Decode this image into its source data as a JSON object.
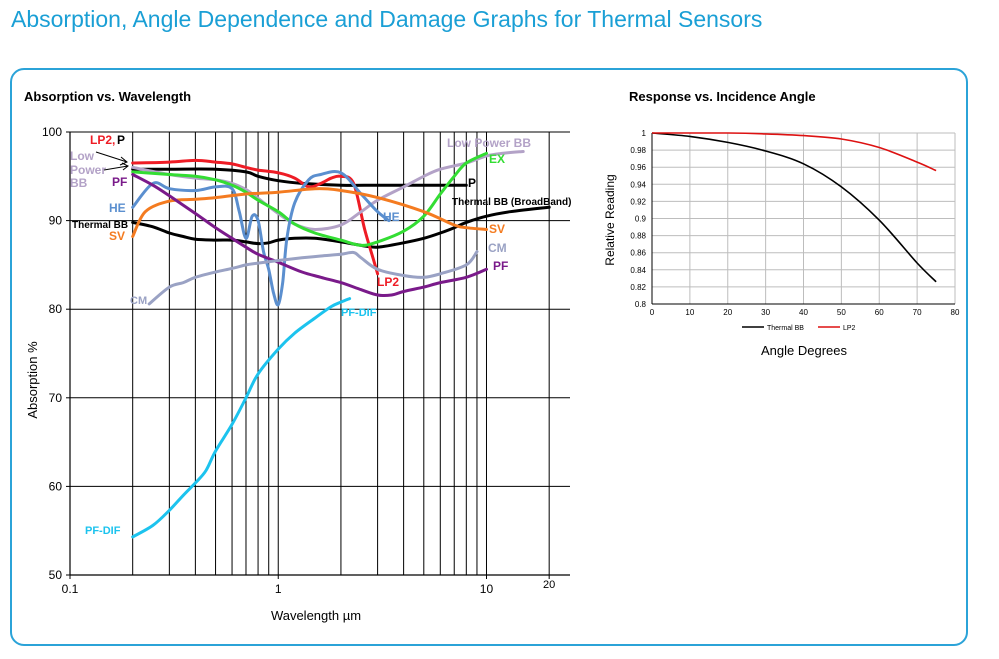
{
  "page": {
    "title": "Absorption, Angle Dependence and Damage Graphs for Thermal Sensors"
  },
  "chart_data": [
    {
      "type": "line",
      "title": "Absorption vs. Wavelength",
      "xlabel": "Wavelength µm",
      "ylabel": "Absorption %",
      "xscale": "log",
      "xlim": [
        0.1,
        20
      ],
      "ylim": [
        50,
        100
      ],
      "xticks": [
        "0.1",
        "1",
        "10",
        "20"
      ],
      "yticks": [
        "50",
        "60",
        "70",
        "80",
        "90",
        "100"
      ],
      "series": [
        {
          "name": "Thermal BB",
          "color": "#000000",
          "points": [
            [
              0.2,
              89.8
            ],
            [
              0.25,
              89.3
            ],
            [
              0.3,
              88.6
            ],
            [
              0.35,
              88.2
            ],
            [
              0.4,
              87.9
            ],
            [
              0.5,
              87.8
            ],
            [
              0.6,
              87.8
            ],
            [
              0.7,
              87.6
            ],
            [
              0.8,
              87.4
            ],
            [
              0.9,
              87.5
            ],
            [
              1.0,
              87.8
            ],
            [
              1.2,
              88.0
            ],
            [
              1.5,
              88.0
            ],
            [
              2.0,
              87.6
            ],
            [
              2.5,
              87.2
            ],
            [
              3.0,
              87.0
            ],
            [
              4.0,
              87.5
            ],
            [
              5.0,
              88.0
            ],
            [
              6.0,
              88.6
            ],
            [
              7.0,
              89.2
            ],
            [
              8.0,
              89.8
            ],
            [
              10.0,
              90.5
            ],
            [
              13.0,
              91.0
            ],
            [
              20.0,
              91.5
            ]
          ]
        },
        {
          "name": "P",
          "color": "#000000",
          "points": [
            [
              0.2,
              95.8
            ],
            [
              0.3,
              95.8
            ],
            [
              0.5,
              95.8
            ],
            [
              0.7,
              95.5
            ],
            [
              0.8,
              95.0
            ],
            [
              1.0,
              94.5
            ],
            [
              1.3,
              94.2
            ],
            [
              2.0,
              94.0
            ],
            [
              3.0,
              94.0
            ],
            [
              5.0,
              94.0
            ],
            [
              8.0,
              94.0
            ]
          ]
        },
        {
          "name": "LP2",
          "color": "#ee1c25",
          "points": [
            [
              0.2,
              96.5
            ],
            [
              0.3,
              96.6
            ],
            [
              0.4,
              96.8
            ],
            [
              0.5,
              96.6
            ],
            [
              0.6,
              96.4
            ],
            [
              0.7,
              96.0
            ],
            [
              0.8,
              95.7
            ],
            [
              1.0,
              95.4
            ],
            [
              1.2,
              94.8
            ],
            [
              1.4,
              93.8
            ],
            [
              1.6,
              94.2
            ],
            [
              1.8,
              94.8
            ],
            [
              2.0,
              95.0
            ],
            [
              2.3,
              94.2
            ],
            [
              2.6,
              89.0
            ],
            [
              2.9,
              85.2
            ],
            [
              3.0,
              84.0
            ]
          ]
        },
        {
          "name": "Low Power BB",
          "color": "#b3a2c7",
          "points": [
            [
              0.2,
              96.0
            ],
            [
              0.3,
              95.2
            ],
            [
              0.4,
              94.8
            ],
            [
              0.5,
              94.6
            ],
            [
              0.6,
              94.2
            ],
            [
              0.7,
              93.5
            ],
            [
              0.8,
              92.5
            ],
            [
              1.0,
              90.8
            ],
            [
              1.2,
              89.6
            ],
            [
              1.5,
              89.0
            ],
            [
              2.0,
              89.5
            ],
            [
              2.5,
              91.0
            ],
            [
              3.0,
              92.3
            ],
            [
              4.0,
              93.8
            ],
            [
              5.0,
              95.0
            ],
            [
              6.0,
              95.8
            ],
            [
              8.0,
              96.5
            ],
            [
              10.0,
              97.3
            ],
            [
              12.0,
              97.6
            ],
            [
              15.0,
              97.8
            ]
          ]
        },
        {
          "name": "EX",
          "color": "#33dd33",
          "points": [
            [
              0.2,
              95.5
            ],
            [
              0.3,
              95.2
            ],
            [
              0.4,
              95.0
            ],
            [
              0.5,
              94.6
            ],
            [
              0.6,
              94.0
            ],
            [
              0.7,
              93.2
            ],
            [
              0.8,
              92.3
            ],
            [
              1.0,
              91.0
            ],
            [
              1.2,
              89.6
            ],
            [
              1.5,
              88.6
            ],
            [
              2.0,
              87.8
            ],
            [
              2.5,
              87.2
            ],
            [
              3.0,
              87.6
            ],
            [
              4.0,
              88.8
            ],
            [
              5.0,
              90.5
            ],
            [
              6.0,
              93.0
            ],
            [
              7.0,
              95.0
            ],
            [
              8.0,
              96.5
            ],
            [
              10.0,
              97.6
            ]
          ]
        },
        {
          "name": "HE",
          "color": "#5b8fcf",
          "points": [
            [
              0.2,
              91.5
            ],
            [
              0.25,
              94.2
            ],
            [
              0.3,
              93.6
            ],
            [
              0.4,
              93.4
            ],
            [
              0.5,
              93.8
            ],
            [
              0.6,
              93.6
            ],
            [
              0.65,
              91.0
            ],
            [
              0.7,
              88.0
            ],
            [
              0.75,
              90.5
            ],
            [
              0.8,
              90.0
            ],
            [
              0.85,
              86.5
            ],
            [
              0.9,
              84.5
            ],
            [
              0.95,
              81.8
            ],
            [
              1.0,
              80.5
            ],
            [
              1.05,
              83.0
            ],
            [
              1.1,
              88.0
            ],
            [
              1.2,
              92.0
            ],
            [
              1.4,
              94.6
            ],
            [
              1.6,
              95.2
            ],
            [
              2.0,
              95.4
            ],
            [
              2.5,
              93.0
            ],
            [
              3.0,
              91.0
            ],
            [
              3.4,
              90.0
            ]
          ]
        },
        {
          "name": "SV",
          "color": "#f47b20",
          "points": [
            [
              0.2,
              88.2
            ],
            [
              0.23,
              91.0
            ],
            [
              0.3,
              92.2
            ],
            [
              0.4,
              92.4
            ],
            [
              0.5,
              92.6
            ],
            [
              0.7,
              93.0
            ],
            [
              1.0,
              93.2
            ],
            [
              1.5,
              93.6
            ],
            [
              2.0,
              93.4
            ],
            [
              3.0,
              92.6
            ],
            [
              5.0,
              91.0
            ],
            [
              7.0,
              89.5
            ],
            [
              8.0,
              89.2
            ],
            [
              10.0,
              89.0
            ]
          ]
        },
        {
          "name": "PF",
          "color": "#7a1a8a",
          "points": [
            [
              0.2,
              95.2
            ],
            [
              0.25,
              94.0
            ],
            [
              0.3,
              92.8
            ],
            [
              0.4,
              90.8
            ],
            [
              0.5,
              89.2
            ],
            [
              0.6,
              88.0
            ],
            [
              0.7,
              87.0
            ],
            [
              0.8,
              86.2
            ],
            [
              1.0,
              85.3
            ],
            [
              1.3,
              84.2
            ],
            [
              1.6,
              83.6
            ],
            [
              2.0,
              83.0
            ],
            [
              2.5,
              82.2
            ],
            [
              3.0,
              81.6
            ],
            [
              3.5,
              81.6
            ],
            [
              4.0,
              82.0
            ],
            [
              5.0,
              82.5
            ],
            [
              6.0,
              83.0
            ],
            [
              8.0,
              83.6
            ],
            [
              10.0,
              84.5
            ]
          ]
        },
        {
          "name": "CM",
          "color": "#9aa2c4",
          "points": [
            [
              0.24,
              80.6
            ],
            [
              0.3,
              82.5
            ],
            [
              0.35,
              83.0
            ],
            [
              0.4,
              83.6
            ],
            [
              0.5,
              84.2
            ],
            [
              0.6,
              84.6
            ],
            [
              0.7,
              85.0
            ],
            [
              0.8,
              85.2
            ],
            [
              1.0,
              85.5
            ],
            [
              1.3,
              85.8
            ],
            [
              1.6,
              86.0
            ],
            [
              2.0,
              86.2
            ],
            [
              2.3,
              86.4
            ],
            [
              2.5,
              85.8
            ],
            [
              3.0,
              84.5
            ],
            [
              4.0,
              83.8
            ],
            [
              5.0,
              83.6
            ],
            [
              6.0,
              84.0
            ],
            [
              8.0,
              85.0
            ],
            [
              9.0,
              86.5
            ]
          ]
        },
        {
          "name": "PF-DIF",
          "color": "#1cc3ee",
          "points": [
            [
              0.2,
              54.3
            ],
            [
              0.25,
              55.6
            ],
            [
              0.3,
              57.3
            ],
            [
              0.35,
              59.0
            ],
            [
              0.4,
              60.4
            ],
            [
              0.45,
              61.8
            ],
            [
              0.5,
              64.0
            ],
            [
              0.6,
              67.0
            ],
            [
              0.7,
              70.0
            ],
            [
              0.8,
              72.7
            ],
            [
              1.0,
              75.5
            ],
            [
              1.2,
              77.3
            ],
            [
              1.5,
              79.0
            ],
            [
              1.8,
              80.3
            ],
            [
              2.0,
              80.8
            ],
            [
              2.2,
              81.2
            ]
          ]
        }
      ],
      "labels": [
        {
          "text": "LP2,",
          "color": "#ee1c25"
        },
        {
          "text": "P",
          "color": "#000000"
        },
        {
          "text": "Low",
          "color": "#b3a2c7"
        },
        {
          "text": "Power",
          "color": "#b3a2c7"
        },
        {
          "text": "BB",
          "color": "#b3a2c7"
        },
        {
          "text": "PF",
          "color": "#7a1a8a"
        },
        {
          "text": "HE",
          "color": "#5b8fcf"
        },
        {
          "text": "Thermal BB",
          "color": "#000000"
        },
        {
          "text": "SV",
          "color": "#f47b20"
        },
        {
          "text": "CM",
          "color": "#9aa2c4"
        },
        {
          "text": "PF-DIF",
          "color": "#1cc3ee"
        },
        {
          "text": "PF-DIF",
          "color": "#1cc3ee"
        },
        {
          "text": "LP2",
          "color": "#ee1c25"
        },
        {
          "text": "HE",
          "color": "#5b8fcf"
        },
        {
          "text": "P",
          "color": "#000000"
        },
        {
          "text": "Low Power BB",
          "color": "#b3a2c7"
        },
        {
          "text": "EX",
          "color": "#33dd33"
        },
        {
          "text": "Thermal BB (BroadBand)",
          "color": "#000000"
        },
        {
          "text": "SV",
          "color": "#f47b20"
        },
        {
          "text": "CM",
          "color": "#9aa2c4"
        },
        {
          "text": "PF",
          "color": "#7a1a8a"
        }
      ]
    },
    {
      "type": "line",
      "title": "Response vs. Incidence Angle",
      "xlabel": "Angle Degrees",
      "ylabel": "Relative Reading",
      "xlim": [
        0,
        80
      ],
      "ylim": [
        0.8,
        1
      ],
      "xticks": [
        "0",
        "10",
        "20",
        "30",
        "40",
        "50",
        "60",
        "70",
        "80"
      ],
      "yticks": [
        "0.8",
        "0.82",
        "0.84",
        "0.86",
        "0.88",
        "0.9",
        "0.92",
        "0.94",
        "0.96",
        "0.98",
        "1"
      ],
      "legend": "bottom",
      "series": [
        {
          "name": "Thermal BB",
          "color": "#000000",
          "points": [
            [
              0,
              1.0
            ],
            [
              10,
              0.996
            ],
            [
              20,
              0.989
            ],
            [
              30,
              0.979
            ],
            [
              40,
              0.964
            ],
            [
              50,
              0.937
            ],
            [
              60,
              0.898
            ],
            [
              70,
              0.848
            ],
            [
              75,
              0.826
            ]
          ]
        },
        {
          "name": "LP2",
          "color": "#dd1111",
          "points": [
            [
              0,
              1.0
            ],
            [
              10,
              1.0
            ],
            [
              20,
              1.0
            ],
            [
              30,
              0.999
            ],
            [
              40,
              0.997
            ],
            [
              50,
              0.993
            ],
            [
              60,
              0.983
            ],
            [
              70,
              0.966
            ],
            [
              75,
              0.956
            ]
          ]
        }
      ]
    }
  ]
}
